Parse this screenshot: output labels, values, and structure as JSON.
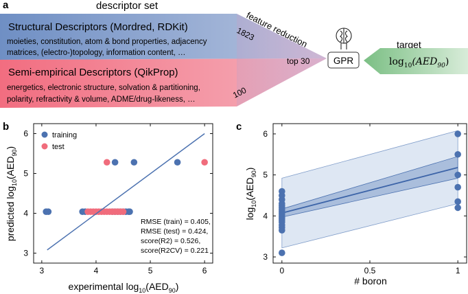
{
  "panel_a": {
    "label": "a",
    "descriptor_set_title": "descriptor set",
    "structural": {
      "title": "Structural Descriptors (Mordred, RDKit)",
      "line1": "moieties, constitution, atom & bond properties, adjacency",
      "line2": "matrices, (electro-)topology, information content, …",
      "count": "1823"
    },
    "semiempirical": {
      "title": "Semi-empirical Descriptors (QikProp)",
      "line1": "energetics, electronic structure, solvation & partitioning,",
      "line2": "polarity, refractivity & volume, ADME/drug-likeness, …",
      "count": "100"
    },
    "feature_reduction": "feature reduction",
    "top_n": "top 30",
    "model_label": "GPR",
    "target_title": "target",
    "target_expr_base": "log",
    "target_expr_sub": "10",
    "target_expr_arg": "(AED",
    "target_expr_arg_sub": "90",
    "target_expr_close": ")",
    "colors": {
      "structural": "#7f9cc9",
      "semiempirical": "#f07d8e",
      "target": "#86c68d",
      "reduction": "#c3a3c9"
    }
  },
  "panel_b": {
    "label": "b",
    "xlabel_prefix": "experimental log",
    "xlabel_sub": "10",
    "xlabel_arg": "(AED",
    "xlabel_arg_sub": "90",
    "xlabel_close": ")",
    "ylabel_prefix": "predicted log",
    "ylabel_sub": "10",
    "ylabel_arg": "(AED",
    "ylabel_arg_sub": "90",
    "ylabel_close": ")",
    "legend": [
      {
        "name": "training",
        "color": "#4c72b0"
      },
      {
        "name": "test",
        "color": "#f06c7c"
      }
    ],
    "metrics": [
      "RMSE (train) = 0.405,",
      "RMSE (test) = 0.424,",
      "score(R2) = 0.526,",
      "score(R2CV) = 0.221"
    ]
  },
  "panel_c": {
    "label": "c",
    "xlabel": "# boron",
    "ylabel_prefix": "log",
    "ylabel_sub": "10",
    "ylabel_arg": "(AED",
    "ylabel_arg_sub": "90",
    "ylabel_close": ")"
  },
  "chart_data": [
    {
      "type": "scatter",
      "panel": "b",
      "xlim": [
        2.85,
        6.15
      ],
      "ylim": [
        2.75,
        6.25
      ],
      "xticks": [
        3,
        4,
        5,
        6
      ],
      "yticks": [
        3,
        4,
        5,
        6
      ],
      "legend_position": "top-left",
      "grid": false,
      "series": [
        {
          "name": "training",
          "color": "#4c72b0",
          "x": [
            3.08,
            3.12,
            3.75,
            3.8,
            4.3,
            4.35,
            4.4,
            4.45,
            4.5,
            4.55,
            4.6,
            4.62,
            4.35,
            4.7,
            5.5
          ],
          "y": [
            4.04,
            4.04,
            4.04,
            4.04,
            4.04,
            4.04,
            4.04,
            4.04,
            4.04,
            4.04,
            4.04,
            4.04,
            5.28,
            5.28,
            5.28
          ]
        },
        {
          "name": "test",
          "color": "#f06c7c",
          "x": [
            3.85,
            3.9,
            3.95,
            4.0,
            4.05,
            4.1,
            4.15,
            4.2,
            4.25,
            4.3,
            4.35,
            4.4,
            4.45,
            4.5,
            4.2,
            6.0
          ],
          "y": [
            4.04,
            4.04,
            4.04,
            4.04,
            4.04,
            4.04,
            4.04,
            4.04,
            4.04,
            4.04,
            4.04,
            4.04,
            4.04,
            4.04,
            5.28,
            5.28
          ]
        }
      ],
      "fit_line": {
        "x": [
          3.1,
          6.0
        ],
        "y": [
          3.08,
          6.0
        ]
      }
    },
    {
      "type": "scatter",
      "panel": "c",
      "xlim": [
        -0.05,
        1.05
      ],
      "ylim": [
        2.85,
        6.25
      ],
      "xticks": [
        0,
        0.5,
        1
      ],
      "yticks": [
        3,
        4,
        5,
        6
      ],
      "grid": false,
      "series": [
        {
          "name": "",
          "color": "#4c72b0",
          "x": [
            0,
            0,
            0,
            0,
            0,
            0,
            0,
            0,
            0,
            0,
            0,
            0,
            0,
            0,
            0,
            0,
            0,
            1,
            1,
            1,
            1,
            1,
            1
          ],
          "y": [
            3.1,
            3.65,
            3.72,
            3.78,
            3.85,
            3.9,
            3.95,
            4.0,
            4.05,
            4.1,
            4.15,
            4.2,
            4.25,
            4.3,
            4.4,
            4.5,
            4.6,
            4.2,
            4.35,
            4.7,
            5.0,
            5.5,
            6.0
          ]
        }
      ],
      "regression": {
        "x": [
          0,
          1
        ],
        "y": [
          4.07,
          5.18
        ]
      },
      "confidence_band": {
        "x": [
          0,
          1
        ],
        "lower": [
          3.97,
          4.92
        ],
        "upper": [
          4.17,
          5.45
        ]
      },
      "prediction_band": {
        "x": [
          0,
          1
        ],
        "lower": [
          3.22,
          4.3
        ],
        "upper": [
          4.92,
          6.08
        ]
      }
    }
  ]
}
